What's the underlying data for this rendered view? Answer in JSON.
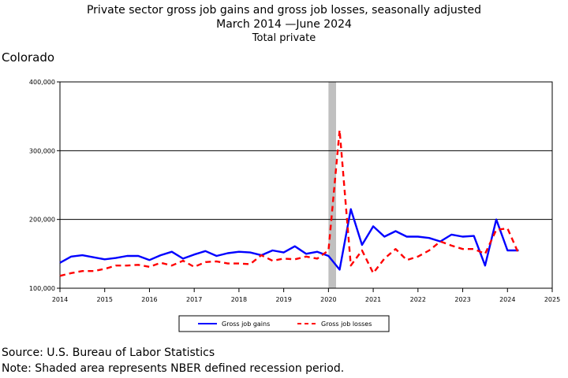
{
  "header": {
    "title": "Private sector gross job gains and gross job losses, seasonally adjusted",
    "date_range": "March 2014 —June 2024",
    "subtitle": "Total private",
    "region": "Colorado"
  },
  "footer": {
    "source": "Source: U.S. Bureau of Labor Statistics",
    "note": "Note: Shaded area represents NBER defined recession period."
  },
  "chart_data": {
    "type": "line",
    "title": "Private sector gross job gains and gross job losses, seasonally adjusted",
    "xlim": [
      2014,
      2025
    ],
    "ylim": [
      100000,
      400000
    ],
    "x_ticks": [
      2014,
      2015,
      2016,
      2017,
      2018,
      2019,
      2020,
      2021,
      2022,
      2023,
      2024,
      2025
    ],
    "y_ticks": [
      100000,
      200000,
      300000,
      400000
    ],
    "y_tick_labels": [
      "100,000",
      "200,000",
      "300,000",
      "400,000"
    ],
    "grid": "horizontal",
    "legend_position": "bottom",
    "recession_shading": [
      {
        "start": 2020.0,
        "end": 2020.17
      }
    ],
    "colors": {
      "gains": "#0000ff",
      "losses": "#ff0000",
      "recession": "#c0c0c0"
    },
    "x": [
      2014.0,
      2014.25,
      2014.5,
      2014.75,
      2015.0,
      2015.25,
      2015.5,
      2015.75,
      2016.0,
      2016.25,
      2016.5,
      2016.75,
      2017.0,
      2017.25,
      2017.5,
      2017.75,
      2018.0,
      2018.25,
      2018.5,
      2018.75,
      2019.0,
      2019.25,
      2019.5,
      2019.75,
      2020.0,
      2020.25,
      2020.5,
      2020.75,
      2021.0,
      2021.25,
      2021.5,
      2021.75,
      2022.0,
      2022.25,
      2022.5,
      2022.75,
      2023.0,
      2023.25,
      2023.5,
      2023.75,
      2024.0,
      2024.25
    ],
    "series": [
      {
        "name": "Gross job gains",
        "style": "solid",
        "values": [
          137000,
          146000,
          148000,
          145000,
          142000,
          144000,
          147000,
          147000,
          141000,
          148000,
          153000,
          143000,
          149000,
          154000,
          147000,
          151000,
          153000,
          152000,
          148000,
          155000,
          152000,
          161000,
          150000,
          153000,
          147000,
          127000,
          215000,
          163000,
          190000,
          175000,
          183000,
          175000,
          175000,
          173000,
          168000,
          178000,
          175000,
          176000,
          133000,
          200000,
          155000,
          155000
        ]
      },
      {
        "name": "Gross job losses",
        "style": "dashed",
        "values": [
          118000,
          122000,
          125000,
          125000,
          128000,
          133000,
          133000,
          134000,
          131000,
          137000,
          133000,
          140000,
          131000,
          138000,
          139000,
          136000,
          136000,
          135000,
          148000,
          140000,
          143000,
          142000,
          146000,
          143000,
          155000,
          330000,
          133000,
          155000,
          122000,
          143000,
          157000,
          141000,
          146000,
          155000,
          168000,
          162000,
          157000,
          157000,
          150000,
          185000,
          187000,
          150000
        ]
      }
    ]
  }
}
